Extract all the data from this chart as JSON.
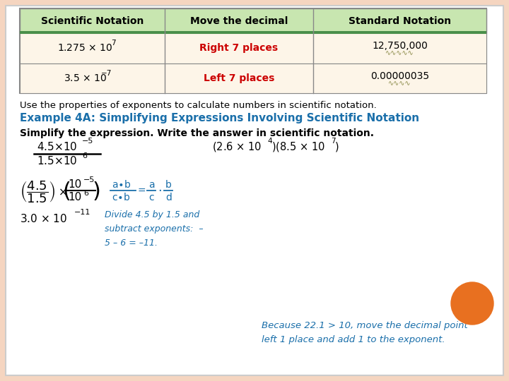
{
  "bg_color": "#f5d5c0",
  "content_bg": "#ffffff",
  "table_header_bg": "#c8e6b0",
  "table_green_line": "#4a8f4a",
  "table_row_bg": "#fdf5e8",
  "table_border": "#888888",
  "red_text": "#cc0000",
  "blue_title": "#1a6faa",
  "orange_circle": "#e87020",
  "intro_text": "Use the properties of exponents to calculate numbers in scientific notation.",
  "title_text": "Example 4A: Simplifying Expressions Involving Scientific Notation",
  "simplify_text": "Simplify the expression. Write the answer in scientific notation.",
  "note_text": "Divide 4.5 by 1.5 and\nsubtract exponents:  –\n5 – 6 = –11.",
  "bottom_note": "Because 22.1 > 10, move the decimal point\nleft 1 place and add 1 to the exponent."
}
